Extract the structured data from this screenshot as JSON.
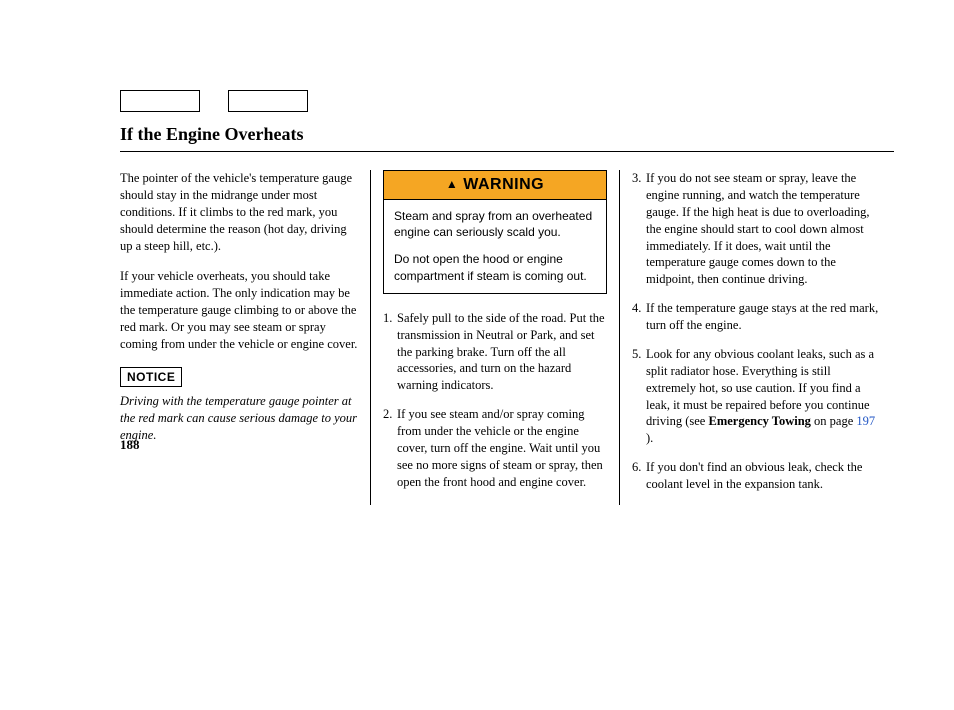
{
  "title": "If the Engine Overheats",
  "page_number": "188",
  "col1": {
    "p1": "The pointer of the vehicle's temperature gauge should stay in the midrange under most conditions. If it climbs to the red mark, you should determine the reason (hot day, driving up a steep hill, etc.).",
    "p2": "If your vehicle overheats, you should take immediate action. The only indication may be the temperature gauge climbing to or above the red mark. Or you may see steam or spray coming from under the vehicle or engine cover.",
    "notice_label": "NOTICE",
    "notice_text": "Driving with the temperature gauge pointer at the red mark can cause serious damage to your engine."
  },
  "warning": {
    "label": "WARNING",
    "p1": "Steam and spray from an overheated engine can seriously scald you.",
    "p2": "Do not open the hood or engine compartment if steam is coming out."
  },
  "steps": {
    "s1": "Safely pull to the side of the road. Put the transmission in Neutral or Park, and set the parking brake. Turn off the all accessories, and turn on the hazard warning indicators.",
    "s2": "If you see steam and/or spray coming from under the vehicle or the engine cover, turn off the engine. Wait until you see no more signs of steam or spray, then open the front hood and engine cover.",
    "s3": "If you do not see steam or spray, leave the engine running, and watch the temperature gauge. If the high heat is due to overloading, the engine should start to cool down almost immediately. If it does, wait until the temperature gauge comes down to the midpoint, then continue driving.",
    "s4": "If the temperature gauge stays at the red mark, turn off the engine.",
    "s5a": "Look for any obvious coolant leaks, such as a split radiator hose. Everything is still extremely hot, so use caution. If you find a leak, it must be repaired before you continue driving (see ",
    "s5b": "Emergency Towing",
    "s5c": " on page ",
    "s5d": "197",
    "s5e": " ).",
    "s6": "If you don't find an obvious leak, check the coolant level in the expansion tank."
  }
}
